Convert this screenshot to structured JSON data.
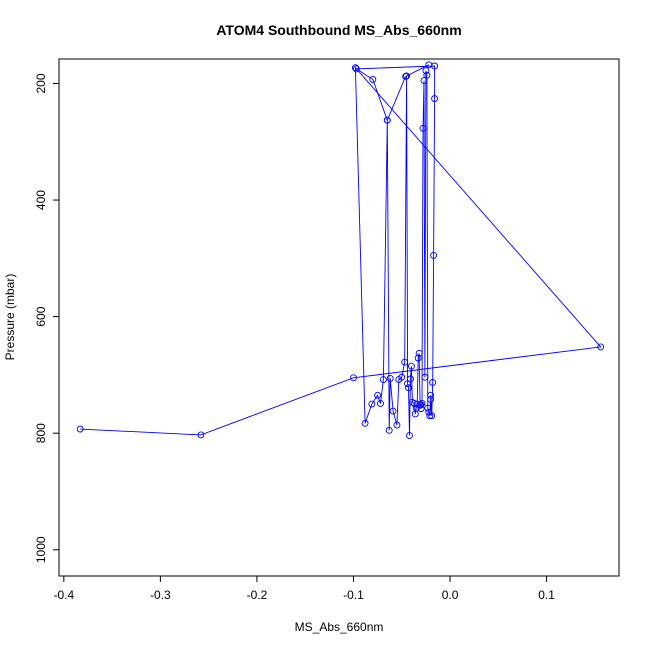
{
  "chart_data": {
    "type": "scatter",
    "title": "ATOM4 Southbound MS_Abs_660nm",
    "xlabel": "MS_Abs_660nm",
    "ylabel": "Pressure (mbar)",
    "xlim": [
      -0.405,
      0.175
    ],
    "ylim": [
      1045,
      158
    ],
    "y_inverted": true,
    "x_ticks": [
      -0.4,
      -0.3,
      -0.2,
      -0.1,
      0.0,
      0.1
    ],
    "x_tick_labels": [
      "-0.4",
      "-0.3",
      "-0.2",
      "-0.1",
      "0.0",
      "0.1"
    ],
    "y_ticks": [
      200,
      400,
      600,
      800,
      1000
    ],
    "y_tick_labels": [
      "200",
      "400",
      "600",
      "800",
      "1000"
    ],
    "grid": false,
    "series_color": "#0000ff",
    "series": [
      {
        "marker": "open-circle",
        "x": [
          -0.383,
          -0.258,
          -0.1,
          0.156,
          -0.098,
          -0.088,
          -0.081,
          -0.075,
          -0.072,
          -0.069,
          -0.065,
          -0.063,
          -0.062,
          -0.059,
          -0.055,
          -0.053,
          -0.05,
          -0.047,
          -0.045,
          -0.044,
          -0.043,
          -0.042,
          -0.041,
          -0.04,
          -0.039,
          -0.037,
          -0.036,
          -0.035,
          -0.034,
          -0.033,
          -0.032,
          -0.031,
          -0.03,
          -0.03,
          -0.029,
          -0.028,
          -0.027,
          -0.026,
          -0.025,
          -0.024,
          -0.023,
          -0.022,
          -0.021,
          -0.02,
          -0.02,
          -0.019,
          -0.018,
          -0.017,
          -0.016,
          -0.016,
          -0.097,
          -0.08,
          -0.065,
          -0.046,
          -0.022
        ],
        "y": [
          793,
          803,
          705,
          652,
          173,
          783,
          750,
          735,
          749,
          708,
          263,
          795,
          706,
          762,
          786,
          708,
          704,
          678,
          187,
          715,
          722,
          804,
          707,
          685,
          747,
          749,
          767,
          757,
          750,
          671,
          663,
          752,
          751,
          758,
          749,
          277,
          195,
          704,
          178,
          186,
          757,
          764,
          770,
          742,
          735,
          770,
          713,
          495,
          226,
          170,
          175,
          193,
          263,
          188,
          168
        ]
      }
    ]
  }
}
